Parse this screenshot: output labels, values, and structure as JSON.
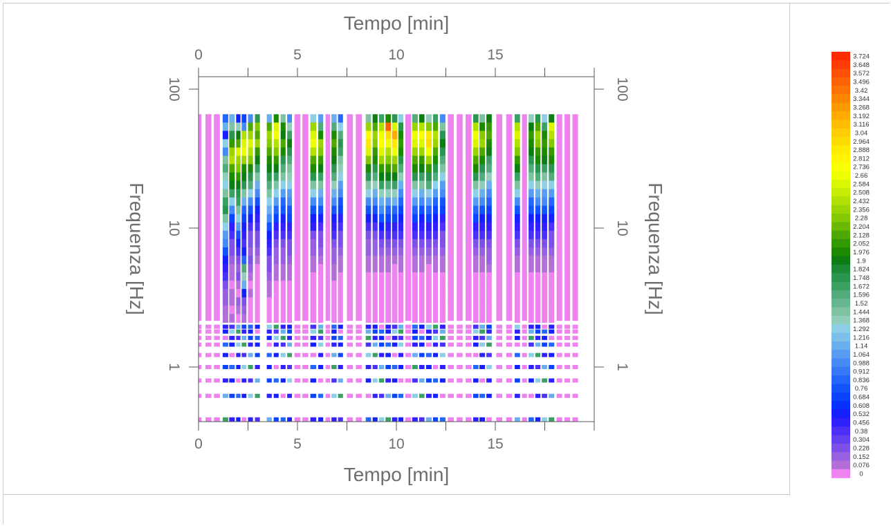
{
  "chart_data": {
    "type": "heatmap",
    "title": "",
    "xlabel": "Tempo [min]",
    "ylabel": "Frequenza [Hz]",
    "x_ticks": [
      "0",
      "5",
      "10",
      "15"
    ],
    "y_ticks": [
      "100",
      "10",
      "1"
    ],
    "xlim": [
      0,
      20
    ],
    "ylim": [
      0.3,
      130
    ],
    "y_scale": "log",
    "grid": false,
    "colorbar_ticks": [
      "3.724",
      "3.648",
      "3.572",
      "3.496",
      "3.42",
      "3.344",
      "3.268",
      "3.192",
      "3.116",
      "3.04",
      "2.964",
      "2.888",
      "2.812",
      "2.736",
      "2.66",
      "2.584",
      "2.508",
      "2.432",
      "2.356",
      "2.28",
      "2.204",
      "2.128",
      "2.052",
      "1.976",
      "1.9",
      "1.824",
      "1.748",
      "1.672",
      "1.596",
      "1.52",
      "1.444",
      "1.368",
      "1.292",
      "1.216",
      "1.14",
      "1.064",
      "0.988",
      "0.912",
      "0.836",
      "0.76",
      "0.684",
      "0.608",
      "0.532",
      "0.456",
      "0.38",
      "0.304",
      "0.228",
      "0.152",
      "0.076",
      "0"
    ],
    "colorbar_colors": [
      "#ff2a00",
      "#ff3c00",
      "#ff4f00",
      "#ff6200",
      "#ff7400",
      "#ff8700",
      "#ff9900",
      "#ffab00",
      "#ffbd00",
      "#ffcd00",
      "#ffdc00",
      "#ffea00",
      "#fff500",
      "#fbff00",
      "#eeff00",
      "#dcf600",
      "#c8ec00",
      "#b2e000",
      "#9bd400",
      "#83c800",
      "#6ab800",
      "#4fa800",
      "#349800",
      "#1c8a00",
      "#0b7d12",
      "#1a8a35",
      "#2a9550",
      "#3ca065",
      "#52ab7a",
      "#68b68e",
      "#7ec2a2",
      "#92cdbc",
      "#8ccfe6",
      "#7cbfea",
      "#6aaeee",
      "#589cf2",
      "#468af5",
      "#3578f8",
      "#2466fb",
      "#1354fd",
      "#0a44ff",
      "#0a30ff",
      "#1620ff",
      "#3020ff",
      "#4a30f8",
      "#6440f0",
      "#7e50e8",
      "#985fe0",
      "#b26fd8",
      "#ee82ee"
    ],
    "series_note": "",
    "columns": [
      {
        "x0": -0.15,
        "x1": 0.15,
        "cells": [
          0
        ]
      },
      {
        "x0": 0.35,
        "x1": 0.65,
        "cells": [
          0
        ]
      },
      {
        "x0": 0.78,
        "x1": 1.08,
        "cells": [
          0
        ]
      },
      {
        "x0": 1.22,
        "x1": 1.5,
        "cells": [
          0.9,
          1.2,
          0.6,
          1.3,
          1.0,
          1.5,
          1.6,
          1.4,
          1.3,
          1.5,
          1.7,
          1.8,
          1.5,
          1.3,
          1.1,
          1.0,
          0.8,
          0.6,
          0.5,
          0.4,
          0.3,
          0.2,
          0.2,
          0.1,
          0.1,
          0.1
        ]
      },
      {
        "x0": 1.55,
        "x1": 1.83,
        "cells": [
          1.2,
          1.5,
          1.8,
          2.1,
          2.4,
          2.5,
          2.2,
          2.0,
          1.9,
          1.7,
          1.3,
          1.0,
          0.7,
          0.5,
          0.4,
          0.3,
          0.3,
          0.2,
          0.1,
          0.1,
          0.0,
          0.1,
          0.1,
          0.0,
          0.1,
          0.0
        ]
      },
      {
        "x0": 1.9,
        "x1": 2.12,
        "cells": [
          0.6,
          1.4,
          1.9,
          2.2,
          2.6,
          2.4,
          2.3,
          2.1,
          1.9,
          1.8,
          1.7,
          1.5,
          1.3,
          1.1,
          0.8,
          0.6,
          0.4,
          0.3,
          0.2,
          0.3,
          0.1,
          0.0,
          0.2,
          0.1,
          0.0,
          0.0
        ]
      },
      {
        "x0": 2.18,
        "x1": 2.42,
        "cells": [
          0.7,
          1.0,
          2.5,
          2.6,
          2.7,
          2.4,
          2.0,
          1.9,
          1.8,
          1.5,
          1.2,
          0.9,
          0.7,
          0.6,
          0.5,
          0.4,
          0.6,
          0.9,
          1.6,
          1.4,
          1.2,
          0.6,
          0.3,
          0.2,
          0.1,
          0.1
        ]
      },
      {
        "x0": 2.5,
        "x1": 2.75,
        "cells": [
          1.0,
          2.2,
          2.4,
          2.6,
          2.5,
          2.3,
          2.0,
          1.8,
          1.6,
          1.3,
          1.0,
          0.8,
          0.6,
          0.4,
          0.3,
          0.3,
          0.2,
          0.3,
          0.2,
          0.1,
          0.0,
          0.1,
          0.0,
          0.0,
          0.0,
          0.0
        ]
      },
      {
        "x0": 2.85,
        "x1": 3.1,
        "cells": [
          1.8,
          2.3,
          2.2,
          2.4,
          2.1,
          1.9,
          1.7,
          1.5,
          1.2,
          1.0,
          0.8,
          0.6,
          0.5,
          0.4,
          0.3,
          0.3,
          0.2,
          0.1,
          0.0,
          0.0,
          0.0,
          0.0,
          0.0,
          0.0,
          0.0,
          0.0
        ]
      },
      {
        "x0": 3.45,
        "x1": 3.7,
        "cells": [
          1.2,
          2.2,
          2.4,
          2.3,
          2.2,
          2.0,
          1.9,
          1.8,
          1.6,
          1.5,
          1.3,
          1.2,
          1.0,
          0.8,
          0.6,
          0.5,
          0.4,
          0.3,
          0.3,
          0.2,
          0.1,
          0.1,
          0.0,
          0.0,
          0.0,
          0.0
        ]
      },
      {
        "x0": 3.8,
        "x1": 4.05,
        "cells": [
          2.0,
          2.6,
          2.7,
          2.5,
          2.3,
          2.1,
          1.9,
          1.7,
          1.5,
          1.3,
          1.1,
          0.9,
          0.7,
          0.5,
          0.4,
          0.3,
          0.2,
          0.2,
          0.1,
          0.1,
          0.0,
          0.0,
          0.0,
          0.0,
          0.0,
          0.0
        ]
      },
      {
        "x0": 4.15,
        "x1": 4.4,
        "cells": [
          1.5,
          2.0,
          1.9,
          2.2,
          2.0,
          1.8,
          1.6,
          1.5,
          1.3,
          1.1,
          0.9,
          0.8,
          0.6,
          0.5,
          0.4,
          0.3,
          0.2,
          0.2,
          0.1,
          0.1,
          0.0,
          0.0,
          0.0,
          0.0,
          0.0,
          0.0
        ]
      },
      {
        "x0": 4.48,
        "x1": 4.72,
        "cells": [
          1.0,
          1.4,
          1.7,
          1.9,
          1.8,
          1.6,
          1.5,
          1.4,
          1.3,
          1.1,
          1.0,
          0.8,
          0.7,
          0.5,
          0.4,
          0.3,
          0.3,
          0.2,
          0.1,
          0.1,
          0.0,
          0.0,
          0.0,
          0.0,
          0.0,
          0.0
        ]
      },
      {
        "x0": 4.85,
        "x1": 5.15,
        "cells": [
          0
        ]
      },
      {
        "x0": 5.25,
        "x1": 5.55,
        "cells": [
          0
        ]
      },
      {
        "x0": 5.65,
        "x1": 5.95,
        "cells": [
          1.3,
          2.4,
          2.6,
          2.7,
          2.5,
          2.2,
          2.0,
          1.8,
          1.5,
          1.3,
          1.0,
          0.8,
          0.6,
          0.5,
          0.3,
          0.2,
          0.2,
          0.1,
          0.1,
          0.0,
          0.0,
          0.0,
          0.0,
          0.0,
          0.0,
          0.0
        ]
      },
      {
        "x0": 6.05,
        "x1": 6.3,
        "cells": [
          1.1,
          1.6,
          2.0,
          2.4,
          2.3,
          2.1,
          1.9,
          1.7,
          1.5,
          1.2,
          1.0,
          0.8,
          0.6,
          0.4,
          0.3,
          0.3,
          0.2,
          0.1,
          0.0,
          0.0,
          0.0,
          0.0,
          0.0,
          0.0,
          0.0,
          0.0
        ]
      },
      {
        "x0": 6.42,
        "x1": 6.65,
        "cells": [
          0
        ]
      },
      {
        "x0": 6.72,
        "x1": 6.98,
        "cells": [
          1.2,
          1.6,
          2.0,
          2.2,
          2.0,
          1.9,
          1.8,
          1.6,
          1.4,
          1.2,
          1.0,
          0.8,
          0.6,
          0.5,
          0.4,
          0.3,
          0.2,
          0.2,
          0.1,
          0.1,
          0.0,
          0.0,
          0.0,
          0.0,
          0.0,
          0.0
        ]
      },
      {
        "x0": 7.05,
        "x1": 7.3,
        "cells": [
          0.9,
          1.3,
          1.6,
          1.8,
          1.7,
          1.5,
          1.4,
          1.3,
          1.1,
          1.0,
          0.8,
          0.7,
          0.5,
          0.4,
          0.3,
          0.3,
          0.2,
          0.1,
          0.1,
          0.0,
          0.0,
          0.0,
          0.0,
          0.0,
          0.0,
          0.0
        ]
      },
      {
        "x0": 7.5,
        "x1": 7.8,
        "cells": [
          0
        ]
      },
      {
        "x0": 7.95,
        "x1": 8.25,
        "cells": [
          0
        ]
      },
      {
        "x0": 8.45,
        "x1": 8.72,
        "cells": [
          1.5,
          2.4,
          2.8,
          2.9,
          2.6,
          2.3,
          2.0,
          1.8,
          1.5,
          1.3,
          1.0,
          0.8,
          0.6,
          0.4,
          0.3,
          0.2,
          0.2,
          0.1,
          0.1,
          0.0,
          0.0,
          0.0,
          0.0,
          0.0,
          0.0,
          0.0
        ]
      },
      {
        "x0": 8.8,
        "x1": 9.05,
        "cells": [
          1.9,
          2.2,
          2.4,
          2.3,
          2.1,
          2.0,
          1.8,
          1.6,
          1.4,
          1.2,
          1.0,
          0.8,
          0.6,
          0.4,
          0.3,
          0.2,
          0.2,
          0.1,
          0.1,
          0.0,
          0.0,
          0.0,
          0.0,
          0.0,
          0.0,
          0.0
        ]
      },
      {
        "x0": 9.12,
        "x1": 9.38,
        "cells": [
          1.7,
          2.5,
          2.7,
          2.8,
          2.6,
          2.4,
          2.1,
          1.9,
          1.7,
          1.4,
          1.2,
          1.0,
          0.8,
          0.6,
          0.4,
          0.3,
          0.2,
          0.1,
          0.1,
          0.0,
          0.0,
          0.0,
          0.0,
          0.0,
          0.0,
          0.0
        ]
      },
      {
        "x0": 9.45,
        "x1": 9.72,
        "cells": [
          2.0,
          3.5,
          3.0,
          2.7,
          2.5,
          2.3,
          2.1,
          1.9,
          1.6,
          1.4,
          1.1,
          0.9,
          0.7,
          0.5,
          0.4,
          0.3,
          0.2,
          0.1,
          0.1,
          0.0,
          0.0,
          0.0,
          0.0,
          0.0,
          0.0,
          0.0
        ]
      },
      {
        "x0": 9.78,
        "x1": 10.05,
        "cells": [
          1.8,
          2.6,
          3.2,
          2.9,
          2.7,
          2.4,
          2.2,
          1.9,
          1.7,
          1.4,
          1.2,
          0.9,
          0.7,
          0.5,
          0.4,
          0.3,
          0.2,
          0.1,
          0.0,
          0.0,
          0.0,
          0.0,
          0.0,
          0.0,
          0.0,
          0.0
        ]
      },
      {
        "x0": 10.1,
        "x1": 10.35,
        "cells": [
          1.3,
          1.8,
          2.0,
          2.1,
          2.0,
          1.8,
          1.6,
          1.4,
          1.2,
          1.0,
          0.9,
          0.7,
          0.6,
          0.5,
          0.4,
          0.3,
          0.2,
          0.1,
          0.1,
          0.0,
          0.0,
          0.0,
          0.0,
          0.0,
          0.0,
          0.0
        ]
      },
      {
        "x0": 10.45,
        "x1": 10.75,
        "cells": [
          0
        ]
      },
      {
        "x0": 10.8,
        "x1": 11.08,
        "cells": [
          1.6,
          2.4,
          2.7,
          2.6,
          2.4,
          2.2,
          2.0,
          1.8,
          1.5,
          1.3,
          1.1,
          0.9,
          0.7,
          0.5,
          0.4,
          0.3,
          0.2,
          0.1,
          0.1,
          0.0,
          0.0,
          0.0,
          0.0,
          0.0,
          0.0,
          0.0
        ]
      },
      {
        "x0": 11.15,
        "x1": 11.42,
        "cells": [
          1.9,
          2.5,
          2.8,
          2.6,
          2.4,
          2.1,
          1.9,
          1.7,
          1.5,
          1.2,
          1.0,
          0.8,
          0.6,
          0.5,
          0.4,
          0.3,
          0.2,
          0.1,
          0.1,
          0.0,
          0.0,
          0.0,
          0.0,
          0.0,
          0.0,
          0.0
        ]
      },
      {
        "x0": 11.5,
        "x1": 11.78,
        "cells": [
          1.4,
          2.3,
          2.9,
          3.0,
          2.7,
          2.4,
          2.1,
          1.8,
          1.6,
          1.3,
          1.1,
          0.9,
          0.7,
          0.5,
          0.4,
          0.3,
          0.2,
          0.1,
          0.0,
          0.0,
          0.0,
          0.0,
          0.0,
          0.0,
          0.0,
          0.0
        ]
      },
      {
        "x0": 11.85,
        "x1": 12.1,
        "cells": [
          1.7,
          2.2,
          2.5,
          2.4,
          2.2,
          2.0,
          1.8,
          1.6,
          1.3,
          1.1,
          0.9,
          0.7,
          0.6,
          0.5,
          0.4,
          0.3,
          0.2,
          0.1,
          0.1,
          0.0,
          0.0,
          0.0,
          0.0,
          0.0,
          0.0,
          0.0
        ]
      },
      {
        "x0": 12.2,
        "x1": 12.48,
        "cells": [
          1.0,
          1.5,
          1.8,
          1.9,
          1.8,
          1.6,
          1.5,
          1.3,
          1.1,
          1.0,
          0.8,
          0.7,
          0.5,
          0.4,
          0.3,
          0.3,
          0.2,
          0.1,
          0.1,
          0.0,
          0.0,
          0.0,
          0.0,
          0.0,
          0.0,
          0.0
        ]
      },
      {
        "x0": 12.6,
        "x1": 12.9,
        "cells": [
          0
        ]
      },
      {
        "x0": 13.05,
        "x1": 13.35,
        "cells": [
          0
        ]
      },
      {
        "x0": 13.5,
        "x1": 13.8,
        "cells": [
          0
        ]
      },
      {
        "x0": 13.88,
        "x1": 14.15,
        "cells": [
          1.8,
          2.5,
          2.7,
          2.6,
          2.4,
          2.2,
          2.0,
          1.8,
          1.5,
          1.3,
          1.1,
          0.9,
          0.7,
          0.5,
          0.4,
          0.3,
          0.2,
          0.1,
          0.1,
          0.0,
          0.0,
          0.0,
          0.0,
          0.0,
          0.0,
          0.0
        ]
      },
      {
        "x0": 14.2,
        "x1": 14.48,
        "cells": [
          1.5,
          2.0,
          2.3,
          2.4,
          2.2,
          2.0,
          1.8,
          1.6,
          1.4,
          1.2,
          1.0,
          0.8,
          0.6,
          0.5,
          0.4,
          0.3,
          0.2,
          0.1,
          0.1,
          0.0,
          0.0,
          0.0,
          0.0,
          0.0,
          0.0,
          0.0
        ]
      },
      {
        "x0": 14.55,
        "x1": 14.82,
        "cells": [
          1.9,
          2.1,
          2.2,
          2.0,
          1.9,
          1.7,
          1.6,
          1.4,
          1.2,
          1.0,
          0.9,
          0.7,
          0.6,
          0.5,
          0.4,
          0.3,
          0.2,
          0.2,
          0.1,
          0.0,
          0.0,
          0.0,
          0.0,
          0.0,
          0.0,
          0.0
        ]
      },
      {
        "x0": 15.05,
        "x1": 15.35,
        "cells": [
          0
        ]
      },
      {
        "x0": 15.55,
        "x1": 15.85,
        "cells": [
          0
        ]
      },
      {
        "x0": 15.98,
        "x1": 16.25,
        "cells": [
          1.7,
          2.5,
          2.6,
          2.5,
          2.3,
          2.1,
          1.9,
          1.7,
          1.5,
          1.3,
          1.0,
          0.8,
          0.6,
          0.5,
          0.4,
          0.3,
          0.2,
          0.1,
          0.1,
          0.0,
          0.0,
          0.0,
          0.0,
          0.0,
          0.0,
          0.0
        ]
      },
      {
        "x0": 16.35,
        "x1": 16.6,
        "cells": [
          0
        ]
      },
      {
        "x0": 16.68,
        "x1": 16.95,
        "cells": [
          1.4,
          1.9,
          2.1,
          2.0,
          1.9,
          1.8,
          1.6,
          1.5,
          1.3,
          1.1,
          0.9,
          0.8,
          0.6,
          0.5,
          0.4,
          0.3,
          0.2,
          0.1,
          0.1,
          0.0,
          0.0,
          0.0,
          0.0,
          0.0,
          0.0,
          0.0
        ]
      },
      {
        "x0": 17.02,
        "x1": 17.28,
        "cells": [
          1.8,
          2.2,
          2.4,
          2.3,
          2.1,
          2.0,
          1.8,
          1.6,
          1.4,
          1.2,
          1.0,
          0.8,
          0.6,
          0.5,
          0.4,
          0.3,
          0.2,
          0.1,
          0.1,
          0.0,
          0.0,
          0.0,
          0.0,
          0.0,
          0.0,
          0.0
        ]
      },
      {
        "x0": 17.35,
        "x1": 17.62,
        "cells": [
          1.3,
          1.7,
          2.0,
          2.1,
          2.0,
          1.9,
          1.7,
          1.5,
          1.3,
          1.1,
          1.0,
          0.8,
          0.6,
          0.5,
          0.4,
          0.3,
          0.2,
          0.1,
          0.1,
          0.0,
          0.0,
          0.0,
          0.0,
          0.0,
          0.0,
          0.0
        ]
      },
      {
        "x0": 17.7,
        "x1": 17.98,
        "cells": [
          1.9,
          2.6,
          2.5,
          2.3,
          2.1,
          2.0,
          1.8,
          1.6,
          1.3,
          1.1,
          0.9,
          0.7,
          0.6,
          0.4,
          0.3,
          0.3,
          0.2,
          0.1,
          0.1,
          0.0,
          0.0,
          0.0,
          0.0,
          0.0,
          0.0,
          0.0
        ]
      },
      {
        "x0": 18.1,
        "x1": 18.38,
        "cells": [
          0
        ]
      },
      {
        "x0": 18.5,
        "x1": 18.78,
        "cells": [
          0
        ]
      },
      {
        "x0": 18.9,
        "x1": 19.18,
        "cells": [
          0
        ]
      }
    ]
  }
}
